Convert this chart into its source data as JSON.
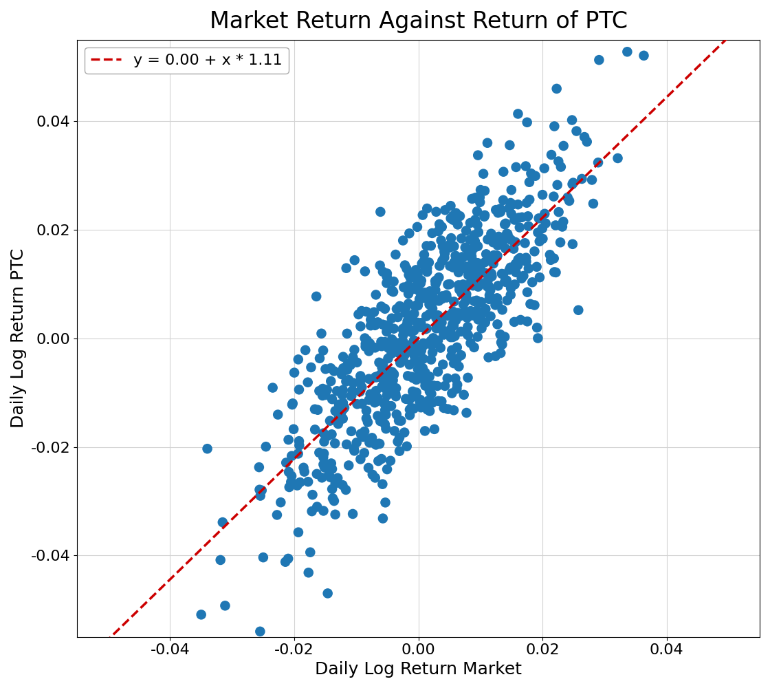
{
  "title": "Market Return Against Return of PTC",
  "xlabel": "Daily Log Return Market",
  "ylabel": "Daily Log Return PTC",
  "intercept": 0.0,
  "slope": 1.11,
  "legend_label": "y = 0.00 + x * 1.11",
  "xlim": [
    -0.055,
    0.055
  ],
  "ylim": [
    -0.055,
    0.055
  ],
  "xticks": [
    -0.04,
    -0.02,
    0.0,
    0.02,
    0.04
  ],
  "yticks": [
    -0.04,
    -0.02,
    0.0,
    0.02,
    0.04
  ],
  "scatter_color": "#1f77b4",
  "line_color": "#cc0000",
  "n_points": 750,
  "seed": 7,
  "title_fontsize": 24,
  "label_fontsize": 18,
  "tick_fontsize": 16,
  "legend_fontsize": 16,
  "marker_size": 110,
  "alpha": 1.0,
  "figsize": [
    11.2,
    10.0
  ],
  "dpi": 100
}
